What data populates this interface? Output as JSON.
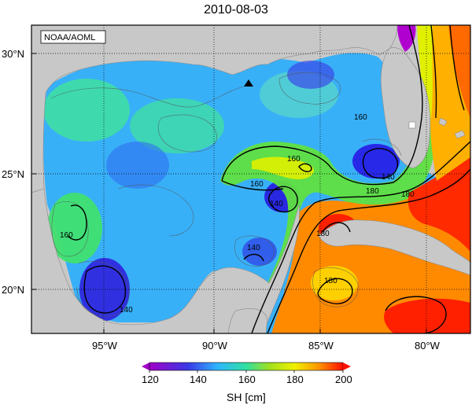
{
  "title": "2010-08-03",
  "credit": "NOAA/AOML",
  "lat_ticks": [
    "30°N",
    "25°N",
    "20°N"
  ],
  "lon_ticks": [
    "95°W",
    "90°W",
    "85°W",
    "80°W"
  ],
  "contour_labels": [
    "160",
    "140",
    "180",
    "160",
    "140",
    "140",
    "160",
    "180",
    "180",
    "140",
    "180",
    "160"
  ],
  "colorbar": {
    "ticks": [
      "120",
      "140",
      "160",
      "180",
      "200"
    ],
    "label": "SH [cm]",
    "range": [
      120,
      200
    ],
    "colors": [
      "#a000c8",
      "#3040e0",
      "#30b4ff",
      "#30e0a0",
      "#90e030",
      "#f0f000",
      "#ff9000",
      "#ff2000"
    ]
  },
  "marker": "triangle-marker"
}
